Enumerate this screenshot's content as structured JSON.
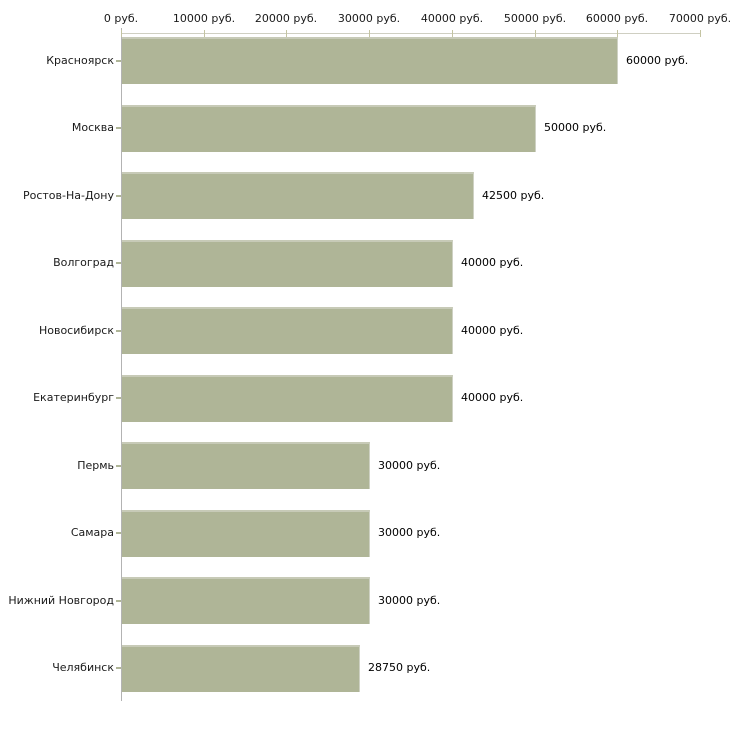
{
  "chart_data": {
    "type": "bar",
    "orientation": "horizontal",
    "title": "",
    "xlabel": "",
    "ylabel": "",
    "unit": "руб.",
    "xlim": [
      0,
      70000
    ],
    "grid": false,
    "legend": false,
    "categories": [
      "Красноярск",
      "Москва",
      "Ростов-На-Дону",
      "Волгоград",
      "Новосибирск",
      "Екатеринбург",
      "Пермь",
      "Самара",
      "Нижний Новгород",
      "Челябинск"
    ],
    "values": [
      60000,
      50000,
      42500,
      40000,
      40000,
      40000,
      30000,
      30000,
      30000,
      28750
    ],
    "value_labels": [
      "60000 руб.",
      "50000 руб.",
      "42500 руб.",
      "40000 руб.",
      "40000 руб.",
      "40000 руб.",
      "30000 руб.",
      "30000 руб.",
      "30000 руб.",
      "28750 руб."
    ],
    "x_ticks": [
      {
        "value": 0,
        "label": "0 руб."
      },
      {
        "value": 10000,
        "label": "10000 руб."
      },
      {
        "value": 20000,
        "label": "20000 руб."
      },
      {
        "value": 30000,
        "label": "30000 руб."
      },
      {
        "value": 40000,
        "label": "40000 руб."
      },
      {
        "value": 50000,
        "label": "50000 руб."
      },
      {
        "value": 60000,
        "label": "60000 руб."
      },
      {
        "value": 70000,
        "label": "70000 руб."
      }
    ],
    "colors": {
      "bar_fill": "#afb597",
      "bar_highlight": "#c7cab7",
      "x_axis_line": "#cfcfc2",
      "y_axis_line": "#b3b3b3",
      "tick": "#c4c4a2",
      "text": "#1a1a1a",
      "background": "#ffffff"
    }
  }
}
